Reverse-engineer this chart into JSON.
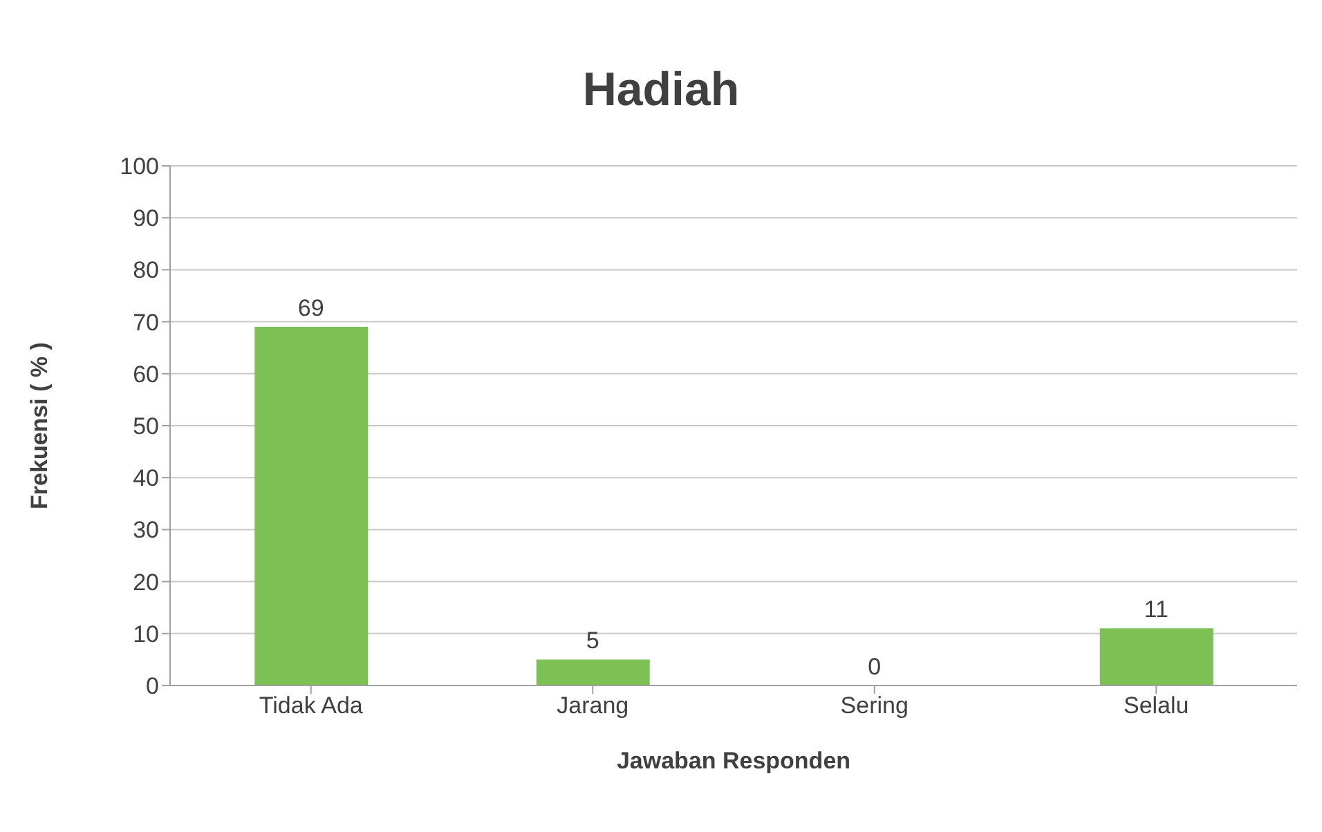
{
  "chart_data": {
    "type": "bar",
    "title": "Hadiah",
    "xlabel": "Jawaban Responden",
    "ylabel": "Frekuensi ( % )",
    "categories": [
      "Tidak Ada",
      "Jarang",
      "Sering",
      "Selalu"
    ],
    "values": [
      69,
      5,
      0,
      11
    ],
    "color": "#7dc155",
    "ylim": [
      0,
      100
    ],
    "yticks": [
      0,
      10,
      20,
      30,
      40,
      50,
      60,
      70,
      80,
      90,
      100
    ],
    "grid": "y",
    "data_labels": true
  }
}
